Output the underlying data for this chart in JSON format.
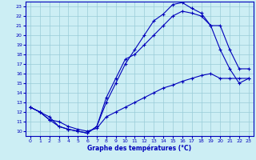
{
  "xlabel": "Graphe des températures (°C)",
  "xlim": [
    -0.5,
    23.5
  ],
  "ylim": [
    9.5,
    23.5
  ],
  "yticks": [
    10,
    11,
    12,
    13,
    14,
    15,
    16,
    17,
    18,
    19,
    20,
    21,
    22,
    23
  ],
  "xticks": [
    0,
    1,
    2,
    3,
    4,
    5,
    6,
    7,
    8,
    9,
    10,
    11,
    12,
    13,
    14,
    15,
    16,
    17,
    18,
    19,
    20,
    21,
    22,
    23
  ],
  "line_color": "#0000bb",
  "bg_color": "#cceef4",
  "grid_color": "#99ccd8",
  "line1_x": [
    0,
    1,
    2,
    3,
    4,
    5,
    6,
    7,
    8,
    9,
    10,
    11,
    12,
    13,
    14,
    15,
    16,
    17,
    18,
    19,
    20,
    21,
    22,
    23
  ],
  "line1_y": [
    12.5,
    12.0,
    11.5,
    10.5,
    10.2,
    10.0,
    9.8,
    10.5,
    13.0,
    15.0,
    17.0,
    18.5,
    20.0,
    21.5,
    22.2,
    23.2,
    23.4,
    22.8,
    22.3,
    21.0,
    18.5,
    16.5,
    15.0,
    15.5
  ],
  "line2_x": [
    0,
    1,
    2,
    3,
    4,
    5,
    6,
    7,
    8,
    9,
    10,
    11,
    12,
    13,
    14,
    15,
    16,
    17,
    18,
    19,
    20,
    21,
    22,
    23
  ],
  "line2_y": [
    12.5,
    12.0,
    11.2,
    11.0,
    10.5,
    10.2,
    10.0,
    10.3,
    11.5,
    12.0,
    12.5,
    13.0,
    13.5,
    14.0,
    14.5,
    14.8,
    15.2,
    15.5,
    15.8,
    16.0,
    15.5,
    15.5,
    15.5,
    15.5
  ],
  "line3_x": [
    0,
    1,
    2,
    3,
    4,
    5,
    6,
    7,
    8,
    9,
    10,
    11,
    12,
    13,
    14,
    15,
    16,
    17,
    18,
    19,
    20,
    21,
    22,
    23
  ],
  "line3_y": [
    12.5,
    12.0,
    11.2,
    10.5,
    10.2,
    10.0,
    9.8,
    10.5,
    13.5,
    15.5,
    17.5,
    18.0,
    19.0,
    20.0,
    21.0,
    22.0,
    22.5,
    22.3,
    22.0,
    21.0,
    21.0,
    18.5,
    16.5,
    16.5
  ]
}
